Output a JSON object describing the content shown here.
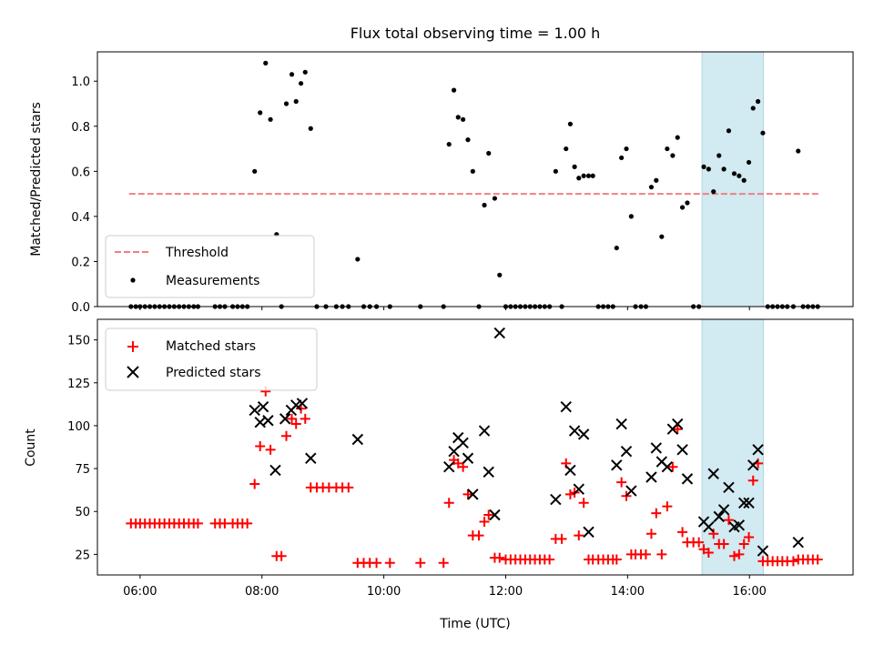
{
  "chart_data": {
    "type": "scatter",
    "title": "Flux total observing time = 1.00 h",
    "xlabel": "Time (UTC)",
    "xlim": [
      5.3,
      17.7
    ],
    "x_ticks": [
      {
        "v": 6,
        "label": "06:00"
      },
      {
        "v": 8,
        "label": "08:00"
      },
      {
        "v": 10,
        "label": "10:00"
      },
      {
        "v": 12,
        "label": "12:00"
      },
      {
        "v": 14,
        "label": "14:00"
      },
      {
        "v": 16,
        "label": "16:00"
      }
    ],
    "highlight_span": {
      "x0": 15.22,
      "x1": 16.23,
      "color": "#add8e6"
    },
    "top": {
      "ylabel": "Matched/Predicted stars",
      "ylim": [
        0,
        1.13
      ],
      "y_ticks": [
        0.0,
        0.2,
        0.4,
        0.6,
        0.8,
        1.0
      ],
      "y_tick_labels": [
        "0.0",
        "0.2",
        "0.4",
        "0.6",
        "0.8",
        "1.0"
      ],
      "threshold": {
        "name": "Threshold",
        "value": 0.5,
        "x0": 5.82,
        "x1": 17.15,
        "color": "#f08080"
      },
      "measurements": {
        "name": "Measurements",
        "color": "#000000",
        "points": [
          [
            5.85,
            0
          ],
          [
            5.93,
            0
          ],
          [
            6.0,
            0
          ],
          [
            6.08,
            0
          ],
          [
            6.16,
            0
          ],
          [
            6.24,
            0
          ],
          [
            6.32,
            0
          ],
          [
            6.4,
            0
          ],
          [
            6.48,
            0
          ],
          [
            6.56,
            0
          ],
          [
            6.64,
            0
          ],
          [
            6.72,
            0
          ],
          [
            6.8,
            0
          ],
          [
            6.88,
            0
          ],
          [
            6.95,
            0
          ],
          [
            7.23,
            0
          ],
          [
            7.31,
            0
          ],
          [
            7.39,
            0
          ],
          [
            7.52,
            0
          ],
          [
            7.6,
            0
          ],
          [
            7.68,
            0
          ],
          [
            7.76,
            0
          ],
          [
            7.88,
            0.6
          ],
          [
            7.97,
            0.86
          ],
          [
            8.06,
            1.08
          ],
          [
            8.14,
            0.83
          ],
          [
            8.24,
            0.32
          ],
          [
            8.32,
            0
          ],
          [
            8.4,
            0.9
          ],
          [
            8.49,
            1.03
          ],
          [
            8.56,
            0.91
          ],
          [
            8.64,
            0.99
          ],
          [
            8.71,
            1.04
          ],
          [
            8.8,
            0.79
          ],
          [
            8.9,
            0
          ],
          [
            9.05,
            0
          ],
          [
            9.22,
            0
          ],
          [
            9.32,
            0
          ],
          [
            9.42,
            0
          ],
          [
            9.57,
            0.21
          ],
          [
            9.67,
            0
          ],
          [
            9.77,
            0
          ],
          [
            9.88,
            0
          ],
          [
            10.1,
            0
          ],
          [
            10.6,
            0
          ],
          [
            10.98,
            0
          ],
          [
            11.07,
            0.72
          ],
          [
            11.15,
            0.96
          ],
          [
            11.22,
            0.84
          ],
          [
            11.3,
            0.83
          ],
          [
            11.38,
            0.74
          ],
          [
            11.46,
            0.6
          ],
          [
            11.56,
            0
          ],
          [
            11.65,
            0.45
          ],
          [
            11.72,
            0.68
          ],
          [
            11.82,
            0.48
          ],
          [
            11.9,
            0.14
          ],
          [
            12.0,
            0
          ],
          [
            12.08,
            0
          ],
          [
            12.16,
            0
          ],
          [
            12.24,
            0
          ],
          [
            12.32,
            0
          ],
          [
            12.4,
            0
          ],
          [
            12.48,
            0
          ],
          [
            12.56,
            0
          ],
          [
            12.64,
            0
          ],
          [
            12.72,
            0
          ],
          [
            12.82,
            0.6
          ],
          [
            12.92,
            0
          ],
          [
            12.99,
            0.7
          ],
          [
            13.06,
            0.81
          ],
          [
            13.13,
            0.62
          ],
          [
            13.2,
            0.57
          ],
          [
            13.28,
            0.58
          ],
          [
            13.36,
            0.58
          ],
          [
            13.43,
            0.58
          ],
          [
            13.52,
            0
          ],
          [
            13.6,
            0
          ],
          [
            13.68,
            0
          ],
          [
            13.76,
            0
          ],
          [
            13.82,
            0.26
          ],
          [
            13.9,
            0.66
          ],
          [
            13.98,
            0.7
          ],
          [
            14.06,
            0.4
          ],
          [
            14.13,
            0
          ],
          [
            14.22,
            0
          ],
          [
            14.3,
            0
          ],
          [
            14.39,
            0.53
          ],
          [
            14.47,
            0.56
          ],
          [
            14.56,
            0.31
          ],
          [
            14.65,
            0.7
          ],
          [
            14.74,
            0.67
          ],
          [
            14.82,
            0.75
          ],
          [
            14.9,
            0.44
          ],
          [
            14.98,
            0.46
          ],
          [
            15.08,
            0
          ],
          [
            15.17,
            0
          ],
          [
            15.25,
            0.62
          ],
          [
            15.33,
            0.61
          ],
          [
            15.41,
            0.51
          ],
          [
            15.5,
            0.67
          ],
          [
            15.58,
            0.61
          ],
          [
            15.66,
            0.78
          ],
          [
            15.75,
            0.59
          ],
          [
            15.83,
            0.58
          ],
          [
            15.91,
            0.56
          ],
          [
            15.99,
            0.64
          ],
          [
            16.06,
            0.88
          ],
          [
            16.14,
            0.91
          ],
          [
            16.22,
            0.77
          ],
          [
            16.3,
            0
          ],
          [
            16.38,
            0
          ],
          [
            16.46,
            0
          ],
          [
            16.54,
            0
          ],
          [
            16.62,
            0
          ],
          [
            16.72,
            0
          ],
          [
            16.8,
            0.69
          ],
          [
            16.88,
            0
          ],
          [
            16.96,
            0
          ],
          [
            17.04,
            0
          ],
          [
            17.12,
            0
          ]
        ]
      },
      "legend": {
        "position": "lower-left"
      }
    },
    "bottom": {
      "ylabel": "Count",
      "ylim": [
        13,
        162
      ],
      "y_ticks": [
        25,
        50,
        75,
        100,
        125,
        150
      ],
      "y_tick_labels": [
        "25",
        "50",
        "75",
        "100",
        "125",
        "150"
      ],
      "matched": {
        "name": "Matched stars",
        "color": "#ff0000",
        "points": [
          [
            5.85,
            43
          ],
          [
            5.93,
            43
          ],
          [
            6.0,
            43
          ],
          [
            6.08,
            43
          ],
          [
            6.16,
            43
          ],
          [
            6.24,
            43
          ],
          [
            6.32,
            43
          ],
          [
            6.4,
            43
          ],
          [
            6.48,
            43
          ],
          [
            6.56,
            43
          ],
          [
            6.64,
            43
          ],
          [
            6.72,
            43
          ],
          [
            6.8,
            43
          ],
          [
            6.88,
            43
          ],
          [
            6.95,
            43
          ],
          [
            7.23,
            43
          ],
          [
            7.31,
            43
          ],
          [
            7.39,
            43
          ],
          [
            7.52,
            43
          ],
          [
            7.6,
            43
          ],
          [
            7.68,
            43
          ],
          [
            7.76,
            43
          ],
          [
            7.88,
            66
          ],
          [
            7.97,
            88
          ],
          [
            8.06,
            120
          ],
          [
            8.14,
            86
          ],
          [
            8.24,
            24
          ],
          [
            8.32,
            24
          ],
          [
            8.4,
            94
          ],
          [
            8.49,
            104
          ],
          [
            8.56,
            101
          ],
          [
            8.64,
            110
          ],
          [
            8.71,
            104
          ],
          [
            8.8,
            64
          ],
          [
            8.9,
            64
          ],
          [
            9.0,
            64
          ],
          [
            9.1,
            64
          ],
          [
            9.22,
            64
          ],
          [
            9.32,
            64
          ],
          [
            9.42,
            64
          ],
          [
            9.57,
            20
          ],
          [
            9.67,
            20
          ],
          [
            9.77,
            20
          ],
          [
            9.88,
            20
          ],
          [
            10.1,
            20
          ],
          [
            10.6,
            20
          ],
          [
            10.98,
            20
          ],
          [
            11.07,
            55
          ],
          [
            11.15,
            80
          ],
          [
            11.22,
            78
          ],
          [
            11.3,
            76
          ],
          [
            11.38,
            60
          ],
          [
            11.46,
            36
          ],
          [
            11.56,
            36
          ],
          [
            11.65,
            44
          ],
          [
            11.72,
            48
          ],
          [
            11.82,
            23
          ],
          [
            11.9,
            23
          ],
          [
            12.0,
            22
          ],
          [
            12.08,
            22
          ],
          [
            12.16,
            22
          ],
          [
            12.24,
            22
          ],
          [
            12.32,
            22
          ],
          [
            12.4,
            22
          ],
          [
            12.48,
            22
          ],
          [
            12.56,
            22
          ],
          [
            12.64,
            22
          ],
          [
            12.72,
            22
          ],
          [
            12.82,
            34
          ],
          [
            12.92,
            34
          ],
          [
            12.99,
            78
          ],
          [
            13.06,
            60
          ],
          [
            13.13,
            61
          ],
          [
            13.2,
            36
          ],
          [
            13.28,
            55
          ],
          [
            13.36,
            22
          ],
          [
            13.43,
            22
          ],
          [
            13.52,
            22
          ],
          [
            13.6,
            22
          ],
          [
            13.68,
            22
          ],
          [
            13.76,
            22
          ],
          [
            13.82,
            22
          ],
          [
            13.9,
            67
          ],
          [
            13.98,
            59
          ],
          [
            14.06,
            25
          ],
          [
            14.13,
            25
          ],
          [
            14.22,
            25
          ],
          [
            14.3,
            25
          ],
          [
            14.39,
            37
          ],
          [
            14.47,
            49
          ],
          [
            14.56,
            25
          ],
          [
            14.65,
            53
          ],
          [
            14.74,
            76
          ],
          [
            14.82,
            98
          ],
          [
            14.9,
            38
          ],
          [
            14.98,
            32
          ],
          [
            15.08,
            32
          ],
          [
            15.17,
            32
          ],
          [
            15.25,
            28
          ],
          [
            15.33,
            26
          ],
          [
            15.41,
            37
          ],
          [
            15.5,
            31
          ],
          [
            15.58,
            31
          ],
          [
            15.66,
            45
          ],
          [
            15.75,
            24
          ],
          [
            15.83,
            25
          ],
          [
            15.91,
            31
          ],
          [
            15.99,
            35
          ],
          [
            16.06,
            68
          ],
          [
            16.14,
            78
          ],
          [
            16.22,
            21
          ],
          [
            16.3,
            21
          ],
          [
            16.38,
            21
          ],
          [
            16.46,
            21
          ],
          [
            16.54,
            21
          ],
          [
            16.62,
            21
          ],
          [
            16.72,
            21
          ],
          [
            16.8,
            22
          ],
          [
            16.88,
            22
          ],
          [
            16.96,
            22
          ],
          [
            17.04,
            22
          ],
          [
            17.12,
            22
          ]
        ]
      },
      "predicted": {
        "name": "Predicted stars",
        "color": "#000000",
        "points": [
          [
            7.88,
            109
          ],
          [
            7.97,
            102
          ],
          [
            8.02,
            111
          ],
          [
            8.1,
            103
          ],
          [
            8.22,
            74
          ],
          [
            8.38,
            104
          ],
          [
            8.48,
            109
          ],
          [
            8.56,
            112
          ],
          [
            8.66,
            113
          ],
          [
            8.8,
            81
          ],
          [
            9.57,
            92
          ],
          [
            11.07,
            76
          ],
          [
            11.15,
            85
          ],
          [
            11.22,
            93
          ],
          [
            11.3,
            90
          ],
          [
            11.38,
            81
          ],
          [
            11.46,
            60
          ],
          [
            11.65,
            97
          ],
          [
            11.72,
            73
          ],
          [
            11.82,
            48
          ],
          [
            11.9,
            154
          ],
          [
            12.82,
            57
          ],
          [
            12.99,
            111
          ],
          [
            13.06,
            74
          ],
          [
            13.13,
            97
          ],
          [
            13.2,
            63
          ],
          [
            13.28,
            95
          ],
          [
            13.36,
            38
          ],
          [
            13.82,
            77
          ],
          [
            13.9,
            101
          ],
          [
            13.98,
            85
          ],
          [
            14.06,
            62
          ],
          [
            14.39,
            70
          ],
          [
            14.47,
            87
          ],
          [
            14.56,
            79
          ],
          [
            14.65,
            76
          ],
          [
            14.74,
            98
          ],
          [
            14.82,
            101
          ],
          [
            14.9,
            86
          ],
          [
            14.98,
            69
          ],
          [
            15.25,
            44
          ],
          [
            15.33,
            41
          ],
          [
            15.41,
            72
          ],
          [
            15.5,
            47
          ],
          [
            15.58,
            51
          ],
          [
            15.66,
            64
          ],
          [
            15.75,
            41
          ],
          [
            15.83,
            42
          ],
          [
            15.91,
            55
          ],
          [
            15.99,
            55
          ],
          [
            16.06,
            77
          ],
          [
            16.14,
            86
          ],
          [
            16.22,
            27
          ],
          [
            16.8,
            32
          ]
        ]
      },
      "legend": {
        "position": "upper-left"
      }
    }
  }
}
